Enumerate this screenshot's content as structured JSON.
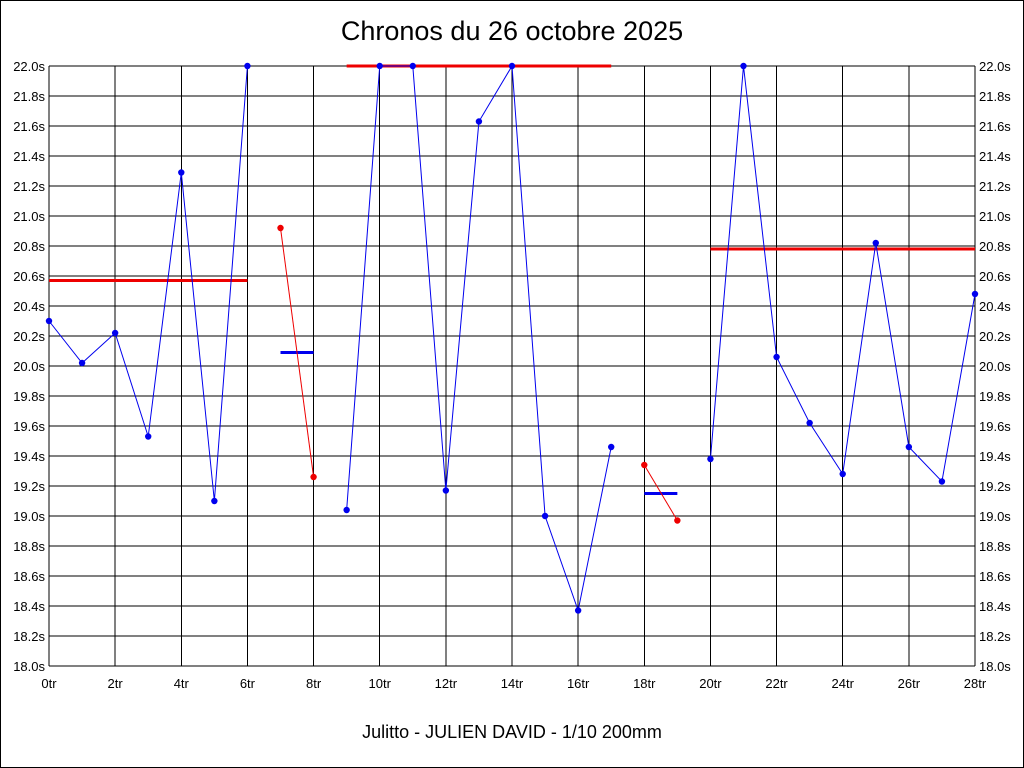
{
  "chart_data": {
    "type": "line",
    "title": "Chronos du 26 octobre 2025",
    "footer": "Julitto - JULIEN DAVID - 1/10 200mm",
    "x_ticks": [
      0,
      2,
      4,
      6,
      8,
      10,
      12,
      14,
      16,
      18,
      20,
      22,
      24,
      26,
      28
    ],
    "x_tick_suffix": "tr",
    "xlim": [
      0,
      28
    ],
    "y_ticks": [
      18.0,
      18.2,
      18.4,
      18.6,
      18.8,
      19.0,
      19.2,
      19.4,
      19.6,
      19.8,
      20.0,
      20.2,
      20.4,
      20.6,
      20.8,
      21.0,
      21.2,
      21.4,
      21.6,
      21.8,
      22.0
    ],
    "y_tick_suffix": "s",
    "ylim": [
      18.0,
      22.0
    ],
    "grid": true,
    "colors": {
      "primary": "#0000ee",
      "secondary": "#ee0000",
      "grid": "#000000"
    },
    "series": [
      {
        "color": "#0000ee",
        "x": [
          0,
          1,
          2,
          3,
          4,
          5,
          6
        ],
        "y": [
          20.3,
          20.02,
          20.22,
          19.53,
          21.29,
          19.1,
          22.0
        ]
      },
      {
        "color": "#ee0000",
        "x": [
          7,
          8
        ],
        "y": [
          20.92,
          19.26
        ]
      },
      {
        "color": "#0000ee",
        "x": [
          9,
          10,
          11,
          12,
          13,
          14,
          15,
          16,
          17
        ],
        "y": [
          19.04,
          22.0,
          22.0,
          19.17,
          21.63,
          22.0,
          19.0,
          18.37,
          19.46
        ]
      },
      {
        "color": "#ee0000",
        "x": [
          18,
          19
        ],
        "y": [
          19.34,
          18.97
        ]
      },
      {
        "color": "#0000ee",
        "x": [
          20,
          21,
          22,
          23,
          24,
          25,
          26,
          27,
          28
        ],
        "y": [
          19.38,
          22.0,
          20.06,
          19.62,
          19.28,
          20.82,
          19.46,
          19.23,
          20.48
        ]
      }
    ],
    "reference_lines": [
      {
        "color": "#ee0000",
        "x_start": 0,
        "x_end": 6,
        "y": 20.57
      },
      {
        "color": "#0000ee",
        "x_start": 7,
        "x_end": 8,
        "y": 20.09
      },
      {
        "color": "#ee0000",
        "x_start": 9,
        "x_end": 17,
        "y": 22.0
      },
      {
        "color": "#0000ee",
        "x_start": 18,
        "x_end": 19,
        "y": 19.15
      },
      {
        "color": "#ee0000",
        "x_start": 20,
        "x_end": 28,
        "y": 20.78
      }
    ]
  }
}
